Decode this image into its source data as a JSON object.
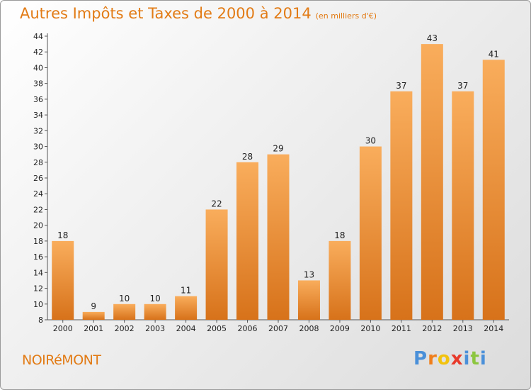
{
  "header": {
    "title": "Autres Impôts et Taxes de 2000 à 2014",
    "unit": "(en milliers d'€)"
  },
  "footer": {
    "town": "NOIRéMONT",
    "logo_letters": [
      "P",
      "r",
      "o",
      "x",
      "i",
      "t",
      "i"
    ],
    "logo_colors": [
      "#4a90d9",
      "#f07f1c",
      "#f2c20d",
      "#e83a2b",
      "#4a90d9",
      "#8cc63f",
      "#4a90d9"
    ]
  },
  "colors": {
    "title": "#e27b15",
    "bar_top": "#f9ad5c",
    "bar_bottom": "#d7721a"
  },
  "chart_data": {
    "type": "bar",
    "title": "Autres Impôts et Taxes de 2000 à 2014",
    "subtitle": "(en milliers d'€)",
    "categories": [
      "2000",
      "2001",
      "2002",
      "2003",
      "2004",
      "2005",
      "2006",
      "2007",
      "2008",
      "2009",
      "2010",
      "2011",
      "2012",
      "2013",
      "2014"
    ],
    "values": [
      18,
      9,
      10,
      10,
      11,
      22,
      28,
      29,
      13,
      18,
      30,
      37,
      43,
      37,
      41
    ],
    "ylim": [
      8,
      44
    ],
    "yticks": [
      8,
      10,
      12,
      14,
      16,
      18,
      20,
      22,
      24,
      26,
      28,
      30,
      32,
      34,
      36,
      38,
      40,
      42,
      44
    ],
    "grid": false
  }
}
